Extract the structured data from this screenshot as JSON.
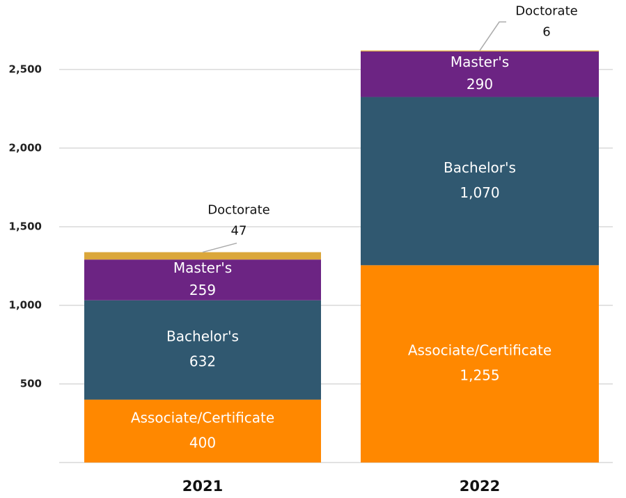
{
  "chart_data": {
    "type": "stacked-bar",
    "categories": [
      "2021",
      "2022"
    ],
    "series": [
      {
        "name": "Associate/Certificate",
        "color": "#ff8800",
        "values": [
          400,
          1255
        ],
        "value_labels": [
          "400",
          "1,255"
        ]
      },
      {
        "name": "Bachelor's",
        "color": "#305870",
        "values": [
          632,
          1070
        ],
        "value_labels": [
          "632",
          "1,070"
        ]
      },
      {
        "name": "Master's",
        "color": "#6c2483",
        "values": [
          259,
          290
        ],
        "value_labels": [
          "259",
          "290"
        ]
      },
      {
        "name": "Doctorate",
        "color": "#dba73b",
        "values": [
          47,
          6
        ],
        "value_labels": [
          "47",
          "6"
        ]
      }
    ],
    "ylim": [
      0,
      2942
    ],
    "yticks": [
      {
        "value": 500,
        "label": "500"
      },
      {
        "value": 1000,
        "label": "1,000"
      },
      {
        "value": 1500,
        "label": "1,500"
      },
      {
        "value": 2000,
        "label": "2,000"
      },
      {
        "value": 2500,
        "label": "2,500"
      }
    ],
    "grid": true
  }
}
